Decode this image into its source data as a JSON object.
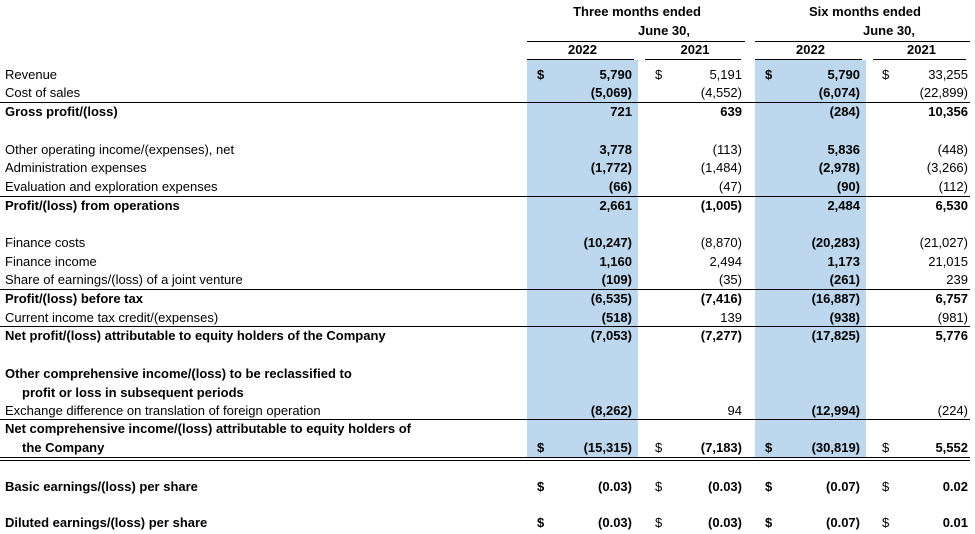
{
  "currency": "$",
  "header": {
    "groups": [
      {
        "title": "Three months ended",
        "subtitle": "June 30,"
      },
      {
        "title": "Six months ended",
        "subtitle": "June 30,"
      }
    ],
    "years": [
      "2022",
      "2021",
      "2022",
      "2021"
    ]
  },
  "table": {
    "rows": [
      {
        "label": [
          "Revenue"
        ],
        "values": [
          "5,790",
          "5,191",
          "5,790",
          "33,255"
        ],
        "dollar": true
      },
      {
        "label": [
          "Cost of sales"
        ],
        "values": [
          "(5,069)",
          "(4,552)",
          "(6,074)",
          "(22,899)"
        ]
      },
      {
        "label": [
          "Gross profit/(loss)"
        ],
        "values": [
          "721",
          "639",
          "(284)",
          "10,356"
        ],
        "bold": true,
        "line_above": true
      },
      {
        "label": [
          "Other operating income/(expenses), net"
        ],
        "values": [
          "3,778",
          "(113)",
          "5,836",
          "(448)"
        ]
      },
      {
        "label": [
          "Administration expenses"
        ],
        "values": [
          "(1,772)",
          "(1,484)",
          "(2,978)",
          "(3,266)"
        ]
      },
      {
        "label": [
          "Evaluation and exploration expenses"
        ],
        "values": [
          "(66)",
          "(47)",
          "(90)",
          "(112)"
        ]
      },
      {
        "label": [
          "Profit/(loss) from operations"
        ],
        "values": [
          "2,661",
          "(1,005)",
          "2,484",
          "6,530"
        ],
        "bold": true,
        "line_above": true
      },
      {
        "label": [
          "Finance costs"
        ],
        "values": [
          "(10,247)",
          "(8,870)",
          "(20,283)",
          "(21,027)"
        ]
      },
      {
        "label": [
          "Finance income"
        ],
        "values": [
          "1,160",
          "2,494",
          "1,173",
          "21,015"
        ]
      },
      {
        "label": [
          "Share of earnings/(loss) of a joint venture"
        ],
        "values": [
          "(109)",
          "(35)",
          "(261)",
          "239"
        ]
      },
      {
        "label": [
          "Profit/(loss) before tax"
        ],
        "values": [
          "(6,535)",
          "(7,416)",
          "(16,887)",
          "6,757"
        ],
        "bold": true,
        "line_above": true
      },
      {
        "label": [
          "Current income tax credit/(expenses)"
        ],
        "values": [
          "(518)",
          "139",
          "(938)",
          "(981)"
        ]
      },
      {
        "label": [
          "Net profit/(loss) attributable to equity holders of the Company"
        ],
        "values": [
          "(7,053)",
          "(7,277)",
          "(17,825)",
          "5,776"
        ],
        "bold": true,
        "line_above": true
      },
      {
        "label": [
          "Other comprehensive income/(loss) to be reclassified to",
          "profit or loss in subsequent periods"
        ],
        "bold": true
      },
      {
        "label": [
          "Exchange difference on translation of foreign operation"
        ],
        "values": [
          "(8,262)",
          "94",
          "(12,994)",
          "(224)"
        ]
      },
      {
        "label": [
          "Net comprehensive income/(loss) attributable to equity holders of",
          "the Company"
        ],
        "values": [
          "(15,315)",
          "(7,183)",
          "(30,819)",
          "5,552"
        ],
        "bold": true,
        "dollar": true,
        "line_above": true,
        "double_line_below": true
      },
      {
        "label": [
          "Basic earnings/(loss) per share"
        ],
        "values": [
          "(0.03)",
          "(0.03)",
          "(0.07)",
          "0.02"
        ],
        "bold": true,
        "dollar": true
      },
      {
        "label": [
          "Diluted earnings/(loss) per share"
        ],
        "values": [
          "(0.03)",
          "(0.03)",
          "(0.07)",
          "0.01"
        ],
        "bold": true,
        "dollar": true
      }
    ]
  }
}
